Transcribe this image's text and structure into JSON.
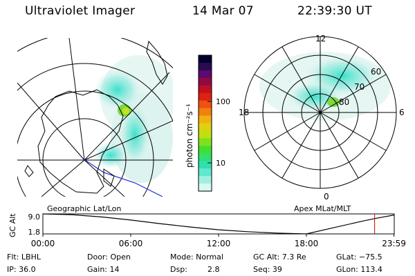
{
  "header": {
    "title": "Ultraviolet Imager",
    "date": "14 Mar 07",
    "time": "22:39:30 UT"
  },
  "left_map": {
    "label": "Geographic Lat/Lon"
  },
  "right_map": {
    "label": "Apex MLat/MLT",
    "mlt_labels": [
      "12",
      "6",
      "0",
      "18"
    ],
    "lat_labels": [
      "60",
      "70",
      "80"
    ]
  },
  "colorbar": {
    "unit_label": "photon cm⁻²s⁻¹",
    "tick_labels": [
      "100",
      "10"
    ],
    "colors": [
      "#000030",
      "#2a0a50",
      "#5a0a70",
      "#900a40",
      "#c01020",
      "#e02010",
      "#f05010",
      "#f08010",
      "#f0b010",
      "#e0d010",
      "#c0e010",
      "#80e020",
      "#40e030",
      "#30e070",
      "#30e0b0",
      "#60e8d0",
      "#a0f0e0",
      "#d8f8f0"
    ]
  },
  "altitude_plot": {
    "ylabel": "GC Alt",
    "y_ticks": [
      "9.0",
      "1.8"
    ],
    "x_ticks": [
      "00:00",
      "06:00",
      "12:00",
      "18:00",
      "23:59"
    ],
    "marker_color": "#cc0000"
  },
  "info": {
    "row1": {
      "flt": "Flt: LBHL",
      "door": "Door: Open",
      "mode": "Mode: Normal",
      "gc_alt": "GC Alt: 7.3 Re",
      "glat": "GLat: −75.5"
    },
    "row2": {
      "ip": "IP: 36.0",
      "gain": "Gain: 14",
      "dsp_label": "Dsp:",
      "dsp_value": "2.8",
      "seq": "Seq: 39",
      "glon": "GLon: 113.4"
    }
  },
  "chart_data": {
    "type": "line",
    "title": "",
    "xlabel": "",
    "ylabel": "GC Alt",
    "x_hours": [
      0,
      2,
      4,
      6,
      8,
      10,
      12,
      14,
      16,
      18,
      20,
      22,
      22.66,
      23.98
    ],
    "y_altitude_re": [
      9.0,
      8.7,
      7.9,
      6.8,
      5.5,
      4.3,
      3.3,
      2.6,
      2.1,
      1.8,
      4.2,
      6.6,
      7.3,
      8.6
    ],
    "xlim": [
      0,
      24
    ],
    "ylim": [
      1.8,
      9.0
    ],
    "current_time_hours": 22.66
  }
}
